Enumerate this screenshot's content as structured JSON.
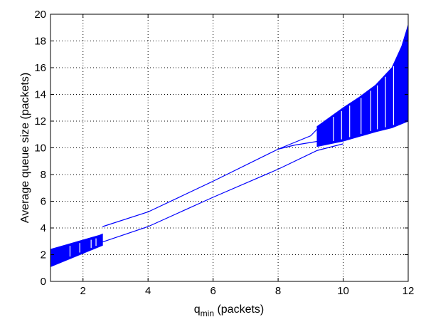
{
  "chart_data": {
    "type": "scatter",
    "title": "",
    "xlabel": {
      "main": "q",
      "subscript": "min",
      "suffix": " (packets)"
    },
    "ylabel": "Average queue size (packets)",
    "xlim": [
      1,
      12
    ],
    "ylim": [
      0,
      20
    ],
    "xticks": [
      2,
      4,
      6,
      8,
      10,
      12
    ],
    "yticks": [
      0,
      2,
      4,
      6,
      8,
      10,
      12,
      14,
      16,
      18,
      20
    ],
    "grid": true,
    "grid_style": "dotted",
    "legend": "none",
    "series_color": "#0000ff",
    "series": [
      {
        "kind": "band",
        "x": [
          1.0,
          1.5,
          2.0,
          2.5,
          2.6
        ],
        "upper": [
          2.4,
          2.75,
          3.1,
          3.45,
          3.55
        ],
        "lower": [
          1.1,
          1.6,
          2.1,
          2.6,
          2.7
        ]
      },
      {
        "kind": "line",
        "x": [
          2.6,
          4.0,
          6.0,
          8.0,
          9.0,
          9.2
        ],
        "y": [
          4.1,
          5.2,
          7.5,
          9.9,
          10.9,
          11.4
        ]
      },
      {
        "kind": "line",
        "x": [
          2.6,
          4.0,
          6.0,
          8.0,
          9.2,
          10.0
        ],
        "y": [
          2.95,
          4.1,
          6.3,
          8.4,
          9.8,
          10.3
        ]
      },
      {
        "kind": "line",
        "x": [
          8.0,
          8.5,
          9.0,
          9.5,
          10.0
        ],
        "y": [
          9.9,
          10.2,
          10.4,
          10.6,
          10.8
        ]
      },
      {
        "kind": "band",
        "x": [
          9.2,
          9.6,
          10.0,
          10.5,
          11.0,
          11.5,
          11.8,
          12.0
        ],
        "upper": [
          11.6,
          12.3,
          13.0,
          13.8,
          14.7,
          16.0,
          17.6,
          19.2
        ],
        "lower": [
          10.1,
          10.3,
          10.5,
          10.85,
          11.2,
          11.5,
          11.8,
          12.0
        ]
      }
    ]
  }
}
